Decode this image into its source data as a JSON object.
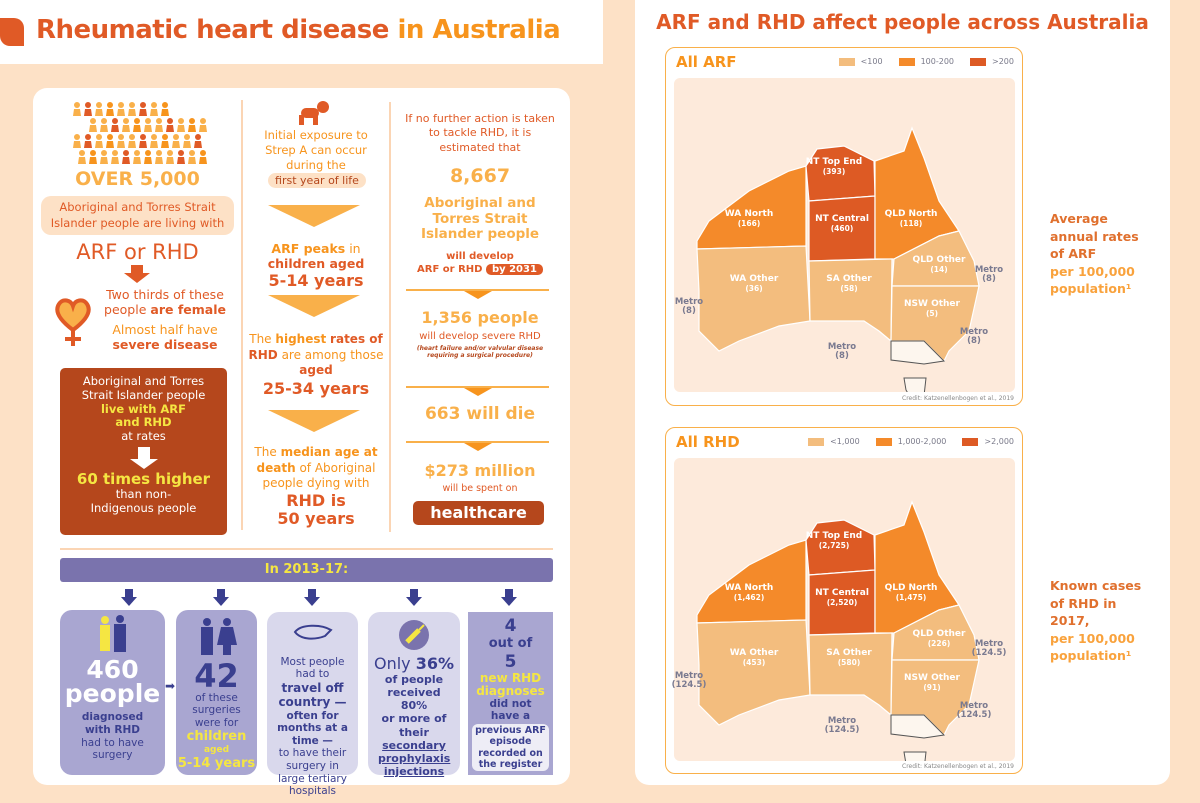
{
  "header": {
    "title_part1": "Rheumatic heart disease",
    "title_part2": "in Australia"
  },
  "col1": {
    "over": "OVER  5,000",
    "living": "Aboriginal and Torres Strait Islander people are living with",
    "arf_rhd": "ARF or RHD",
    "two_thirds": "Two thirds of these",
    "people_are": "people",
    "are_female": "are female",
    "almost_half": "Almost half have",
    "severe": "severe disease",
    "box_line1": "Aboriginal and Torres Strait Islander people",
    "box_live": "live with ARF and RHD",
    "box_at_rates": "at rates",
    "box_times": "60 times higher",
    "box_than": "than non-Indigenous people"
  },
  "col2": {
    "exposure": "Initial exposure to Strep A can occur during the",
    "first_year": "first year of life",
    "arf_peaks": "ARF peaks",
    "in": "in",
    "children_aged": "children aged",
    "peak_age": "5-14 years",
    "the": "The",
    "highest": "highest",
    "rates_of_rhd": "rates of RHD",
    "are_among": "are among those",
    "aged": "aged",
    "rhd_age": "25-34 years",
    "median_the": "The",
    "median": "median age at death",
    "of_aboriginal": "of Aboriginal people dying with",
    "rhd_is": "RHD is",
    "median_age": "50 years"
  },
  "col3": {
    "intro": "If no further action is taken to tackle RHD, it is estimated that",
    "num": "8,667",
    "people": "Aboriginal and Torres Strait Islander people",
    "will_develop": "will develop",
    "arf_or_rhd": "ARF or RHD",
    "by_2031": "by 2031",
    "severe_num": "1,356 people",
    "severe_text": "will develop severe RHD",
    "severe_note": "(heart failure and/or valvular disease requiring a surgical procedure)",
    "die": "663 will die",
    "cost": "$273 million",
    "spent": "will be spent on",
    "healthcare": "healthcare"
  },
  "period": {
    "banner": "In 2013-17:"
  },
  "boxes": {
    "b1": {
      "num": "460",
      "people": "people",
      "diag": "diagnosed with RHD",
      "had": "had to have surgery"
    },
    "b2": {
      "num": "42",
      "of": "of these surgeries were for",
      "children": "children",
      "aged": "aged",
      "age": "5-14 years"
    },
    "b3": {
      "line1": "Most people had to",
      "travel": "travel off country —",
      "months": "often for months at a time —",
      "rest": "to have their surgery in large tertiary hospitals"
    },
    "b4": {
      "only": "Only",
      "pct": "36%",
      "of": "of people received 80%",
      "more": "or more of their",
      "link": "secondary prophylaxis injections"
    },
    "b5": {
      "four": "4",
      "outof": "out of",
      "five": "5",
      "new": "new RHD diagnoses",
      "didnot": "did not have a",
      "prev": "previous ARF episode recorded on the register"
    }
  },
  "right": {
    "title": "ARF and RHD affect people across Australia",
    "arf_caption_1": "Average annual rates of ARF",
    "arf_caption_2": "per 100,000 population¹",
    "rhd_caption_1": "Known cases of RHD in 2017,",
    "rhd_caption_2": "per 100,000 population¹"
  },
  "maps": [
    {
      "title": "All ARF",
      "legend": [
        {
          "label": "<100",
          "color": "#f3bd7e"
        },
        {
          "label": "100-200",
          "color": "#f48a2a"
        },
        {
          "label": ">200",
          "color": "#dd5a24"
        }
      ],
      "regions": [
        {
          "name": "WA North",
          "value": "(166)",
          "cat": 1
        },
        {
          "name": "NT Top End",
          "value": "(393)",
          "cat": 2
        },
        {
          "name": "NT Central",
          "value": "(460)",
          "cat": 2
        },
        {
          "name": "QLD North",
          "value": "(118)",
          "cat": 1
        },
        {
          "name": "WA Other",
          "value": "(36)",
          "cat": 0
        },
        {
          "name": "SA Other",
          "value": "(58)",
          "cat": 0
        },
        {
          "name": "QLD Other",
          "value": "(14)",
          "cat": 0
        },
        {
          "name": "NSW Other",
          "value": "(5)",
          "cat": 0
        }
      ],
      "metro": "Metro",
      "metro_value": "(8)",
      "credit": "Credit: Katzenellenbogen et al., 2019"
    },
    {
      "title": "All RHD",
      "legend": [
        {
          "label": "<1,000",
          "color": "#f3bd7e"
        },
        {
          "label": "1,000-2,000",
          "color": "#f48a2a"
        },
        {
          "label": ">2,000",
          "color": "#dd5a24"
        }
      ],
      "regions": [
        {
          "name": "WA North",
          "value": "(1,462)",
          "cat": 1
        },
        {
          "name": "NT Top End",
          "value": "(2,725)",
          "cat": 2
        },
        {
          "name": "NT Central",
          "value": "(2,520)",
          "cat": 2
        },
        {
          "name": "QLD North",
          "value": "(1,475)",
          "cat": 1
        },
        {
          "name": "WA Other",
          "value": "(453)",
          "cat": 0
        },
        {
          "name": "SA Other",
          "value": "(580)",
          "cat": 0
        },
        {
          "name": "QLD Other",
          "value": "(226)",
          "cat": 0
        },
        {
          "name": "NSW Other",
          "value": "(91)",
          "cat": 0
        }
      ],
      "metro": "Metro",
      "metro_value": "(124.5)",
      "credit": "Credit: Katzenellenbogen et al., 2019"
    }
  ]
}
